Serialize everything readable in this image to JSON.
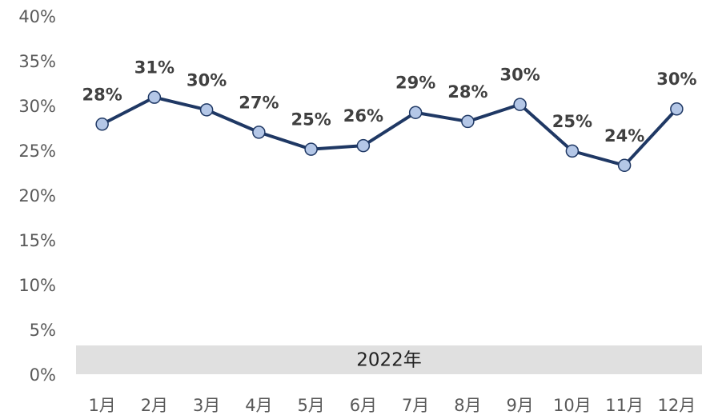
{
  "chart_data": {
    "type": "line",
    "categories": [
      "1月",
      "2月",
      "3月",
      "4月",
      "5月",
      "6月",
      "7月",
      "8月",
      "9月",
      "10月",
      "11月",
      "12月"
    ],
    "series": [
      {
        "name": "2022",
        "color": "#1f3864",
        "marker_color": "#b4c7e7",
        "values": [
          28.1,
          31.1,
          29.7,
          27.2,
          25.3,
          25.7,
          29.4,
          28.4,
          30.3,
          25.1,
          23.5,
          29.8
        ],
        "value_labels": [
          "28%",
          "31%",
          "30%",
          "27%",
          "25%",
          "26%",
          "29%",
          "28%",
          "30%",
          "25%",
          "24%",
          "30%"
        ]
      }
    ],
    "group_label": "2022年",
    "ylim": [
      0,
      40
    ],
    "yticks": [
      {
        "value": 0,
        "label": "0%"
      },
      {
        "value": 5,
        "label": "5%"
      },
      {
        "value": 10,
        "label": "10%"
      },
      {
        "value": 15,
        "label": "15%"
      },
      {
        "value": 20,
        "label": "20%"
      },
      {
        "value": 25,
        "label": "25%"
      },
      {
        "value": 30,
        "label": "30%"
      },
      {
        "value": 35,
        "label": "35%"
      },
      {
        "value": 40,
        "label": "40%"
      }
    ],
    "grid": false
  }
}
